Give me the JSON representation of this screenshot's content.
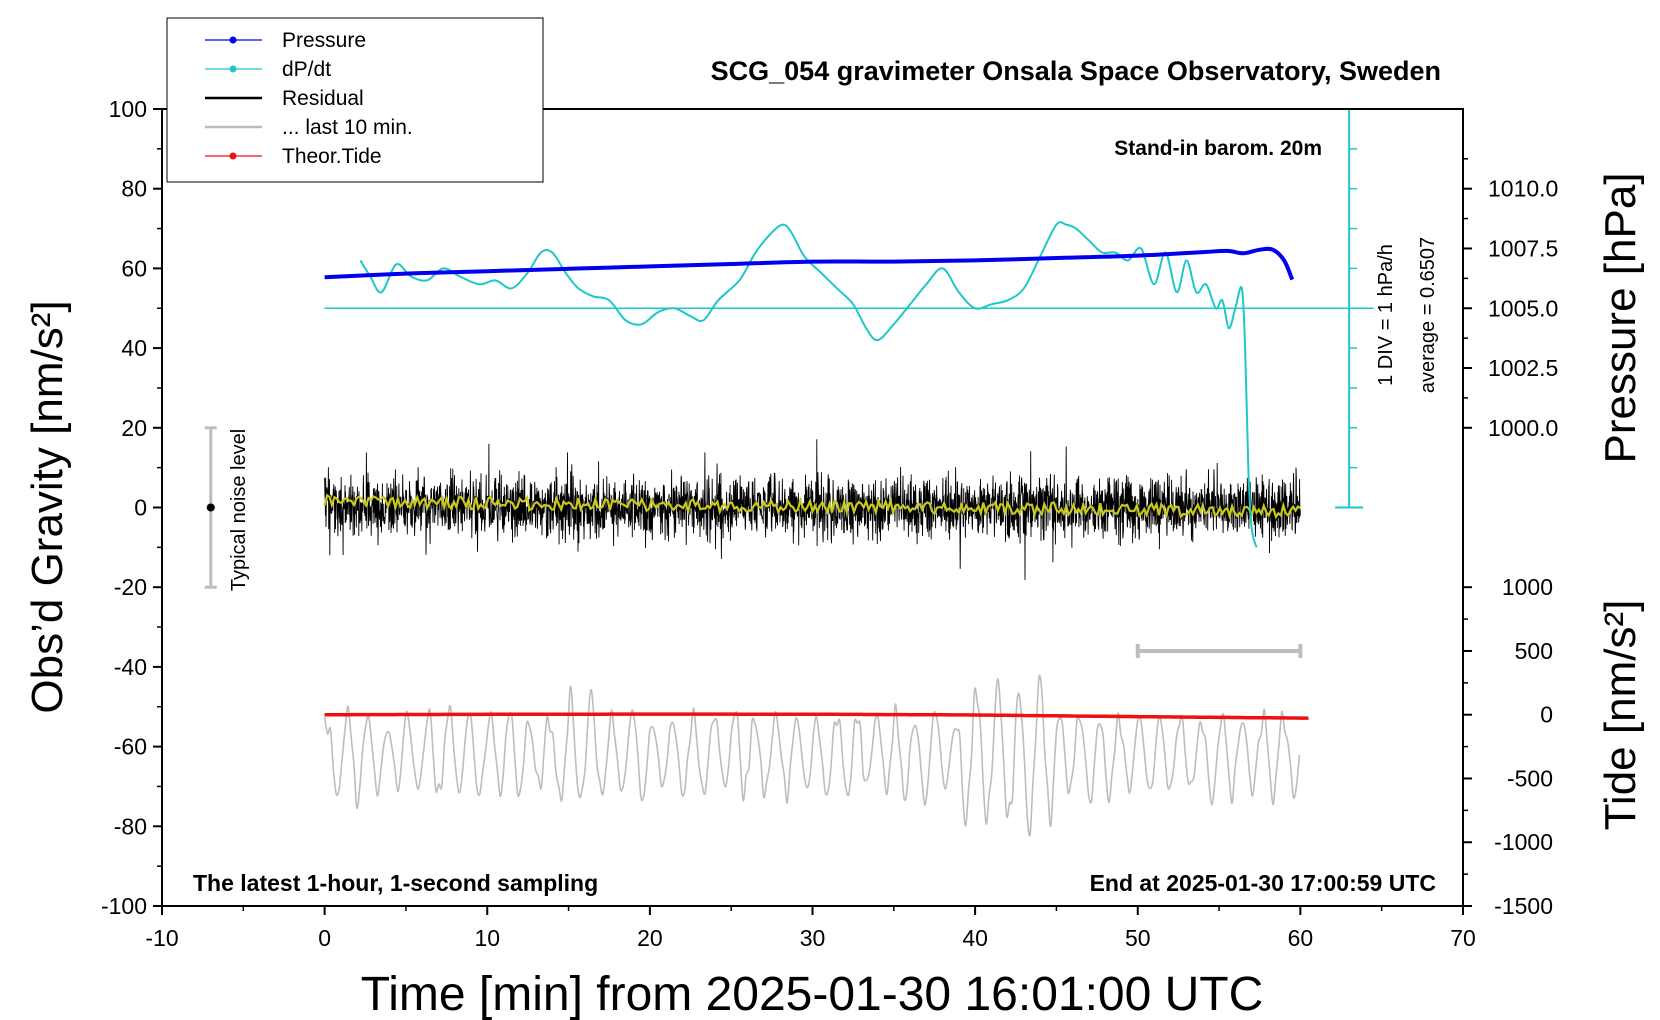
{
  "colors": {
    "pressure": "#0000ee",
    "dpdt": "#1ec8c8",
    "residual": "#000000",
    "last10": "#bdbdbd",
    "theor_tide": "#ee1111",
    "smoothed": "#c8c81e",
    "noise_bar": "#bdbdbd"
  },
  "chart_data": {
    "type": "line",
    "title": "SCG_054 gravimeter Onsala Space Observatory, Sweden",
    "xlabel": "Time [min] from 2025-01-30 16:01:00 UTC",
    "ylabel_left": "Obs’d Gravity [nm/s²]",
    "ylabel_right_top": "Pressure [hPa]",
    "ylabel_right_bottom": "Tide [nm/s²]",
    "xlim": [
      -10,
      70
    ],
    "ylim": [
      -100,
      100
    ],
    "x_ticks": [
      -10,
      0,
      10,
      20,
      30,
      40,
      50,
      60,
      70
    ],
    "y_ticks": [
      -100,
      -80,
      -60,
      -40,
      -20,
      0,
      20,
      40,
      60,
      80,
      100
    ],
    "x_tick_labels": [
      "-10",
      "0",
      "10",
      "20",
      "30",
      "40",
      "50",
      "60",
      "70"
    ],
    "y_tick_labels": [
      "-100",
      "-80",
      "-60",
      "-40",
      "-20",
      "0",
      "20",
      "40",
      "60",
      "80",
      "100"
    ],
    "pressure_axis": {
      "ticks": [
        1000.0,
        1002.5,
        1005.0,
        1007.5,
        1010.0
      ],
      "tick_labels": [
        "1000.0",
        "1002.5",
        "1005.0",
        "1007.5",
        "1010.0"
      ],
      "gravity_at_1000": 20,
      "gravity_at_1010": 80
    },
    "tide_axis": {
      "ticks": [
        -1500,
        -1000,
        -500,
        0,
        500,
        1000
      ],
      "tick_labels": [
        "-1500",
        "-1000",
        "-500",
        "0",
        "500",
        "1000"
      ],
      "gravity_at_-1500": -100,
      "gravity_at_1000": -20
    },
    "legend": {
      "position": "top-left",
      "entries": [
        {
          "label": "Pressure",
          "color_key": "pressure",
          "marker": true
        },
        {
          "label": "dP/dt",
          "color_key": "dpdt",
          "marker": true
        },
        {
          "label": "Residual",
          "color_key": "residual",
          "marker": false
        },
        {
          "label": "... last 10 min.",
          "color_key": "last10",
          "marker": false
        },
        {
          "label": "Theor.Tide",
          "color_key": "theor_tide",
          "marker": true
        }
      ]
    },
    "series": [
      {
        "name": "Pressure",
        "unit": "hPa",
        "x": [
          0,
          5,
          10,
          15,
          20,
          25,
          30,
          35,
          40,
          45,
          50,
          54,
          55.5,
          56.5,
          57.5,
          58.3,
          59,
          59.5
        ],
        "values": [
          1006.3,
          1006.45,
          1006.55,
          1006.65,
          1006.75,
          1006.85,
          1006.95,
          1006.95,
          1007.0,
          1007.1,
          1007.2,
          1007.35,
          1007.4,
          1007.3,
          1007.45,
          1007.45,
          1007.0,
          1006.2
        ]
      },
      {
        "name": "dP/dt",
        "x": [
          2.2,
          2.8,
          3.5,
          4.4,
          5.3,
          6.3,
          7.3,
          8.3,
          9.5,
          10.5,
          11.5,
          12.5,
          13.3,
          14.0,
          14.8,
          15.6,
          16.5,
          17.5,
          18.5,
          19.5,
          20.5,
          21.5,
          22.5,
          23.3,
          24.2,
          25.5,
          26.5,
          27.5,
          28.2,
          28.7,
          29.5,
          30.5,
          31.5,
          32.5,
          33.3,
          34.0,
          35.0,
          36.0,
          37.0,
          38.0,
          39.0,
          40.0,
          41.0,
          42.0,
          43.0,
          44.0,
          45.0,
          45.6,
          46.2,
          47.0,
          47.8,
          48.6,
          49.4,
          50.2,
          51.0,
          51.7,
          52.4,
          53.0,
          53.6,
          54.2,
          54.8,
          55.2,
          55.6,
          56.0,
          56.4,
          56.6,
          56.8,
          57.0,
          57.3
        ],
        "values": [
          62,
          58,
          54,
          61,
          58,
          57,
          60,
          58,
          56,
          57,
          55,
          59,
          64,
          64,
          59,
          55,
          53,
          52,
          47,
          46,
          49,
          50,
          48,
          47,
          52,
          57,
          64,
          69,
          71,
          69,
          63,
          59,
          55,
          51,
          45,
          42,
          46,
          51,
          56,
          60,
          54,
          50,
          51,
          52,
          55,
          63,
          71,
          71,
          70,
          67,
          64,
          64,
          62,
          65,
          56,
          64,
          54,
          62,
          54,
          56,
          50,
          52,
          45,
          50,
          55,
          40,
          10,
          -5,
          -10
        ]
      },
      {
        "name": "Residual",
        "note": "1-second residual samples, amplitude mostly within ±15 nm/s², extremes ~+27 / -25",
        "x": [
          0,
          60
        ],
        "values": [
          0,
          0
        ],
        "envelope": [
          -25,
          27
        ]
      },
      {
        "name": "Residual (smoothed)",
        "x": [
          0,
          60
        ],
        "values": [
          1.5,
          -1.0
        ]
      },
      {
        "name": "... last 10 min.",
        "note": "previous residual segment plotted offset around -60 nm/s²",
        "x": [
          0,
          60
        ],
        "center": -62,
        "envelope": [
          -82,
          -40
        ]
      },
      {
        "name": "Theor.Tide",
        "unit": "nm/s²",
        "x": [
          0,
          10,
          20,
          30,
          40,
          50,
          60.5
        ],
        "values": [
          0,
          3,
          5,
          4,
          -2,
          -15,
          -27
        ]
      }
    ],
    "noise_level": {
      "label": "Typical noise level",
      "x": -7,
      "center": 0,
      "range": [
        -20,
        20
      ]
    },
    "dpdt_average": {
      "label": "average = 0.6507",
      "y": 50
    },
    "dpdt_scale": {
      "label": "1 DIV = 1 hPa/h",
      "x": 63,
      "y_range": [
        0,
        100
      ]
    },
    "tide_scale_bar": {
      "x": [
        50,
        60
      ],
      "tide_value": 500
    }
  },
  "annotations": {
    "stand_in": "Stand-in barom. 20m",
    "latest": "The latest 1-hour, 1-second sampling",
    "end_at": "End at 2025-01-30 17:00:59 UTC"
  }
}
